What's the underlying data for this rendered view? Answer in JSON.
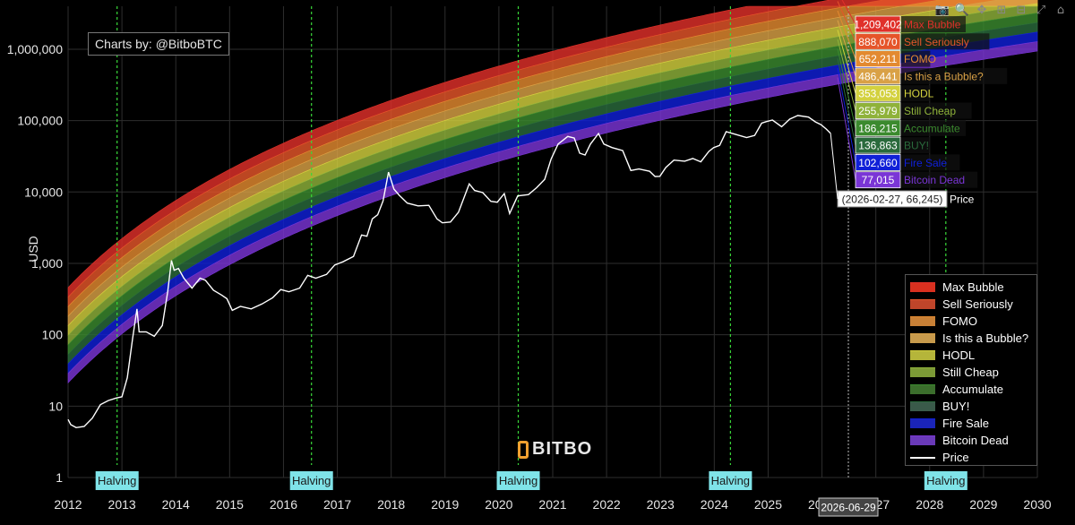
{
  "credit": "Charts by: @BitboBTC",
  "ylabel": "USD",
  "brand": "BITBO",
  "toolbar": [
    {
      "name": "camera-icon",
      "glyph": "📷"
    },
    {
      "name": "zoom-icon",
      "glyph": "🔍"
    },
    {
      "name": "pan-icon",
      "glyph": "✥"
    },
    {
      "name": "zoom-in-icon",
      "glyph": "⊞"
    },
    {
      "name": "zoom-out-icon",
      "glyph": "⊟"
    },
    {
      "name": "autoscale-icon",
      "glyph": "⤢"
    },
    {
      "name": "home-icon",
      "glyph": "⌂"
    }
  ],
  "chart_data": {
    "type": "area",
    "xlim": [
      2012,
      2030
    ],
    "ylim": [
      1,
      4000000
    ],
    "yscale": "log",
    "x_ticks": [
      "2012",
      "2013",
      "2014",
      "2015",
      "2016",
      "2017",
      "2018",
      "2019",
      "2020",
      "2021",
      "2022",
      "2023",
      "2024",
      "2025",
      "2026",
      "2027",
      "2028",
      "2029",
      "2030"
    ],
    "y_ticks": [
      {
        "value": 1,
        "label": "1"
      },
      {
        "value": 10,
        "label": "10"
      },
      {
        "value": 100,
        "label": "100"
      },
      {
        "value": 1000,
        "label": "1,000"
      },
      {
        "value": 10000,
        "label": "10,000"
      },
      {
        "value": 100000,
        "label": "100,000"
      },
      {
        "value": 1000000,
        "label": "1,000,000"
      }
    ],
    "grid": true,
    "legend_position": "bottom-right",
    "halvings": [
      {
        "label": "Halving",
        "date": 2012.91
      },
      {
        "label": "Halving",
        "date": 2016.52
      },
      {
        "label": "Halving",
        "date": 2020.36
      },
      {
        "label": "Halving",
        "date": 2024.3
      },
      {
        "label": "Halving",
        "date": 2028.3
      }
    ],
    "bands": [
      {
        "name": "Max Bubble",
        "color": "#e0302a",
        "current_value": "1,209,402",
        "legend_color": "#d9301f"
      },
      {
        "name": "Sell Seriously",
        "color": "#e5552a",
        "current_value": "888,070",
        "legend_color": "#c0452a"
      },
      {
        "name": "FOMO",
        "color": "#e38a30",
        "current_value": "652,211",
        "legend_color": "#c88036"
      },
      {
        "name": "Is this a Bubble?",
        "color": "#d9a146",
        "current_value": "486,441",
        "legend_color": "#c79a4c"
      },
      {
        "name": "HODL",
        "color": "#d3d13e",
        "current_value": "353,053",
        "legend_color": "#b5b53a"
      },
      {
        "name": "Still Cheap",
        "color": "#8fb23a",
        "current_value": "255,979",
        "legend_color": "#7c9a36"
      },
      {
        "name": "Accumulate",
        "color": "#3b8a2e",
        "current_value": "186,215",
        "legend_color": "#3b6e2c"
      },
      {
        "name": "BUY!",
        "color": "#2a6a3c",
        "current_value": "136,863",
        "legend_color": "#3a5a4a"
      },
      {
        "name": "Fire Sale",
        "color": "#1020d8",
        "current_value": "102,660",
        "legend_color": "#1a24b8"
      },
      {
        "name": "Bitcoin Dead",
        "color": "#7a35d6",
        "current_value": "77,015",
        "legend_color": "#6a3ab8"
      }
    ],
    "series": [
      {
        "name": "Price",
        "color": "#ffffff",
        "points": [
          [
            2012.0,
            6.5
          ],
          [
            2012.05,
            5.5
          ],
          [
            2012.15,
            5.0
          ],
          [
            2012.3,
            5.2
          ],
          [
            2012.45,
            6.8
          ],
          [
            2012.6,
            10.5
          ],
          [
            2012.75,
            12.0
          ],
          [
            2012.9,
            13.0
          ],
          [
            2013.0,
            13.5
          ],
          [
            2013.1,
            25
          ],
          [
            2013.2,
            90
          ],
          [
            2013.28,
            230
          ],
          [
            2013.32,
            110
          ],
          [
            2013.45,
            110
          ],
          [
            2013.6,
            95
          ],
          [
            2013.75,
            135
          ],
          [
            2013.85,
            400
          ],
          [
            2013.92,
            1100
          ],
          [
            2013.97,
            800
          ],
          [
            2014.05,
            850
          ],
          [
            2014.15,
            620
          ],
          [
            2014.3,
            450
          ],
          [
            2014.45,
            620
          ],
          [
            2014.55,
            580
          ],
          [
            2014.7,
            420
          ],
          [
            2014.85,
            360
          ],
          [
            2014.95,
            320
          ],
          [
            2015.05,
            220
          ],
          [
            2015.2,
            250
          ],
          [
            2015.4,
            230
          ],
          [
            2015.6,
            270
          ],
          [
            2015.8,
            330
          ],
          [
            2015.95,
            430
          ],
          [
            2016.1,
            400
          ],
          [
            2016.3,
            450
          ],
          [
            2016.45,
            680
          ],
          [
            2016.6,
            620
          ],
          [
            2016.8,
            700
          ],
          [
            2016.95,
            950
          ],
          [
            2017.1,
            1050
          ],
          [
            2017.3,
            1250
          ],
          [
            2017.45,
            2500
          ],
          [
            2017.55,
            2400
          ],
          [
            2017.65,
            4200
          ],
          [
            2017.75,
            4800
          ],
          [
            2017.85,
            7500
          ],
          [
            2017.95,
            19000
          ],
          [
            2018.05,
            11000
          ],
          [
            2018.15,
            9000
          ],
          [
            2018.3,
            7000
          ],
          [
            2018.5,
            6400
          ],
          [
            2018.7,
            6500
          ],
          [
            2018.85,
            4200
          ],
          [
            2018.95,
            3700
          ],
          [
            2019.1,
            3800
          ],
          [
            2019.25,
            5200
          ],
          [
            2019.45,
            13000
          ],
          [
            2019.55,
            10500
          ],
          [
            2019.7,
            9800
          ],
          [
            2019.85,
            7400
          ],
          [
            2019.97,
            7200
          ],
          [
            2020.1,
            9500
          ],
          [
            2020.2,
            5000
          ],
          [
            2020.35,
            8800
          ],
          [
            2020.55,
            9200
          ],
          [
            2020.7,
            11500
          ],
          [
            2020.85,
            15000
          ],
          [
            2020.97,
            29000
          ],
          [
            2021.1,
            47000
          ],
          [
            2021.28,
            60000
          ],
          [
            2021.4,
            57000
          ],
          [
            2021.5,
            35000
          ],
          [
            2021.6,
            33000
          ],
          [
            2021.7,
            47000
          ],
          [
            2021.85,
            66000
          ],
          [
            2021.95,
            47000
          ],
          [
            2022.1,
            42000
          ],
          [
            2022.3,
            38000
          ],
          [
            2022.45,
            20000
          ],
          [
            2022.6,
            21000
          ],
          [
            2022.8,
            19500
          ],
          [
            2022.9,
            16500
          ],
          [
            2022.99,
            16600
          ],
          [
            2023.1,
            22000
          ],
          [
            2023.25,
            28000
          ],
          [
            2023.45,
            27000
          ],
          [
            2023.6,
            29500
          ],
          [
            2023.75,
            26500
          ],
          [
            2023.9,
            37000
          ],
          [
            2023.99,
            42000
          ],
          [
            2024.1,
            45000
          ],
          [
            2024.22,
            70000
          ],
          [
            2024.4,
            64000
          ],
          [
            2024.6,
            58000
          ],
          [
            2024.75,
            62000
          ],
          [
            2024.88,
            92000
          ],
          [
            2024.97,
            97000
          ],
          [
            2025.08,
            102000
          ],
          [
            2025.25,
            82000
          ],
          [
            2025.4,
            105000
          ],
          [
            2025.55,
            118000
          ],
          [
            2025.75,
            112000
          ],
          [
            2025.88,
            96000
          ],
          [
            2025.98,
            88000
          ],
          [
            2026.08,
            76000
          ],
          [
            2026.16,
            66245
          ]
        ]
      }
    ],
    "hover": {
      "price_label": "(2026-02-27, 66,245)",
      "price_name": "Price",
      "x_label": "2026-06-29",
      "x": 2026.49
    }
  }
}
